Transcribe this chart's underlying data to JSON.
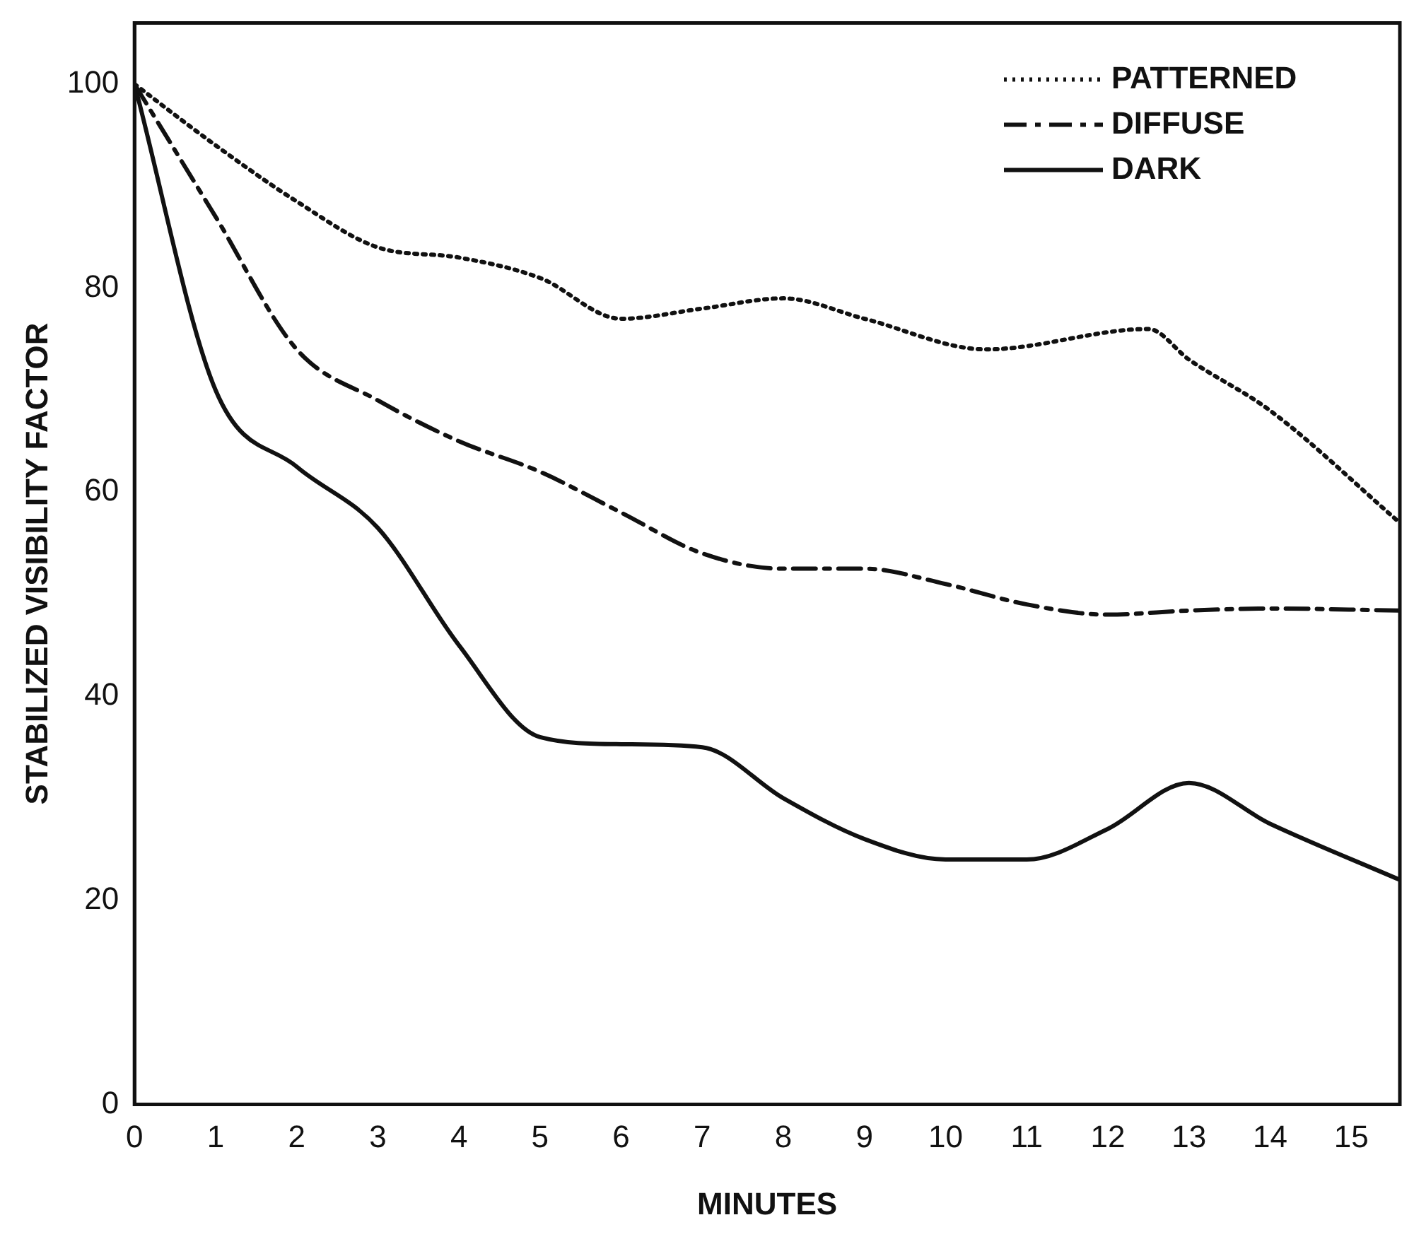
{
  "chart_data": {
    "type": "line",
    "xlabel": "MINUTES",
    "ylabel": "STABILIZED VISIBILITY FACTOR",
    "xlim": [
      0,
      15.6
    ],
    "xticks": [
      0,
      1,
      2,
      3,
      4,
      5,
      6,
      7,
      8,
      9,
      10,
      11,
      12,
      13,
      14,
      15
    ],
    "ylim": [
      0,
      106
    ],
    "yticks": [
      0,
      20,
      40,
      60,
      80,
      100
    ],
    "grid": false,
    "legend": "top right",
    "marker": "none",
    "series": [
      {
        "name": "PATTERNED",
        "color": "#111111",
        "line_style": "dotted",
        "x": [
          0,
          1,
          2,
          3,
          4,
          5,
          6,
          7,
          8,
          9,
          10.5,
          12.5,
          13,
          14,
          15.6
        ],
        "values": [
          100,
          94,
          88.5,
          84,
          83,
          81,
          77,
          78,
          79,
          77,
          74,
          76,
          73,
          68,
          57
        ]
      },
      {
        "name": "DIFFUSE",
        "color": "#111111",
        "line_style": "dashdot",
        "x": [
          0,
          1,
          2,
          3,
          4,
          5,
          6,
          7,
          8,
          9,
          10,
          11,
          12,
          13,
          14,
          15.6
        ],
        "values": [
          100,
          87,
          74,
          69,
          65,
          62,
          58,
          54,
          52.5,
          52.5,
          51,
          49,
          48,
          48.4,
          48.6,
          48.4
        ]
      },
      {
        "name": "DARK",
        "color": "#111111",
        "line_style": "solid",
        "x": [
          0,
          1,
          2,
          3,
          4,
          5,
          6,
          7,
          8,
          9,
          10,
          11,
          12,
          13,
          14,
          15.6
        ],
        "values": [
          100,
          70,
          62.5,
          56.5,
          45,
          36,
          35.3,
          35,
          30,
          26,
          24,
          24,
          27,
          31.5,
          27.5,
          22
        ]
      }
    ]
  }
}
